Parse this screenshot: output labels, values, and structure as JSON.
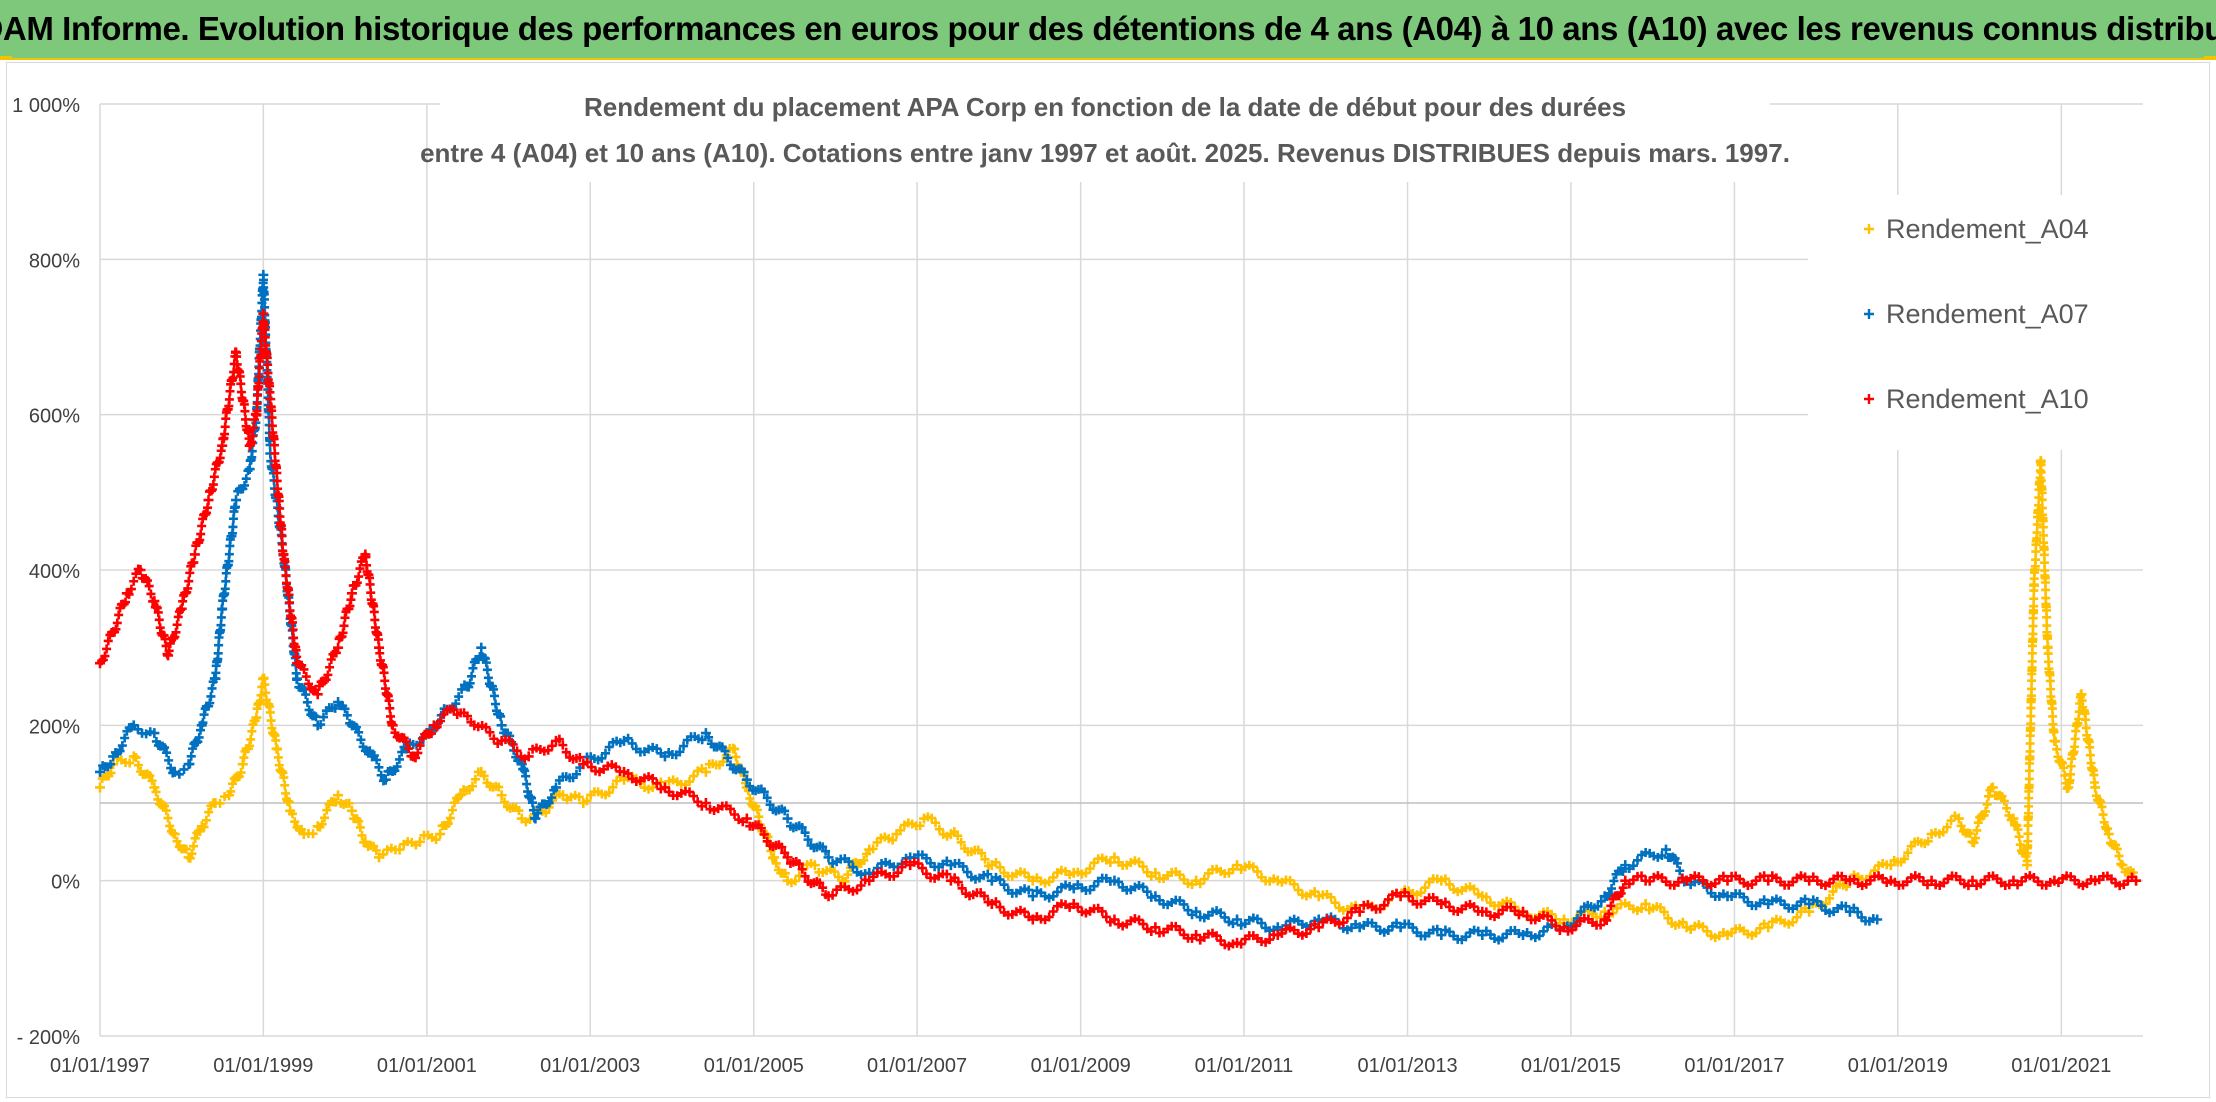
{
  "banner": {
    "title": "ADAM Informe. Evolution historique des performances en euros pour des détentions de 4 ans (A04) à 10 ans (A10) avec les revenus connus distribués"
  },
  "colors": {
    "banner_bg": "#7dc87a",
    "banner_accent": "#f2c300",
    "grid": "#d9d9d9",
    "axis_text": "#404040",
    "title_text": "#595959"
  },
  "chart_data": {
    "type": "scatter",
    "title": "Rendement du placement APA Corp en fonction de la date de début pour des durées",
    "subtitle": "entre 4 (A04) et 10 ans (A10). Cotations entre janv 1997 et août. 2025. Revenus DISTRIBUES depuis mars. 1997.",
    "xlabel": "",
    "ylabel": "",
    "xlim": [
      "01/01/1997",
      "01/01/2022"
    ],
    "ylim": [
      -200,
      1000
    ],
    "x_ticks": [
      "01/01/1997",
      "01/01/1999",
      "01/01/2001",
      "01/01/2003",
      "01/01/2005",
      "01/01/2007",
      "01/01/2009",
      "01/01/2011",
      "01/01/2013",
      "01/01/2015",
      "01/01/2017",
      "01/01/2019",
      "01/01/2021"
    ],
    "y_ticks": [
      {
        "value": -200,
        "label": "- 200%"
      },
      {
        "value": 0,
        "label": "0%"
      },
      {
        "value": 200,
        "label": "200%"
      },
      {
        "value": 400,
        "label": "400%"
      },
      {
        "value": 600,
        "label": "600%"
      },
      {
        "value": 800,
        "label": "800%"
      },
      {
        "value": 1000,
        "label": "1 000%"
      }
    ],
    "grid": true,
    "legend_position": "top-right",
    "marker": "+",
    "series": [
      {
        "name": "Rendement_A04",
        "color": "#ffc000",
        "points": [
          [
            "01/01/1997",
            120
          ],
          [
            "01/03/1997",
            150
          ],
          [
            "01/06/1997",
            160
          ],
          [
            "01/09/1997",
            120
          ],
          [
            "01/12/1997",
            60
          ],
          [
            "01/02/1998",
            30
          ],
          [
            "01/04/1998",
            70
          ],
          [
            "01/06/1998",
            100
          ],
          [
            "01/08/1998",
            110
          ],
          [
            "01/10/1998",
            150
          ],
          [
            "01/12/1998",
            210
          ],
          [
            "01/01/1999",
            260
          ],
          [
            "01/03/1999",
            170
          ],
          [
            "01/05/1999",
            90
          ],
          [
            "01/07/1999",
            60
          ],
          [
            "01/09/1999",
            70
          ],
          [
            "01/12/1999",
            110
          ],
          [
            "01/02/2000",
            90
          ],
          [
            "01/04/2000",
            50
          ],
          [
            "01/06/2000",
            30
          ],
          [
            "01/09/2000",
            40
          ],
          [
            "01/12/2000",
            50
          ],
          [
            "01/03/2001",
            60
          ],
          [
            "01/06/2001",
            110
          ],
          [
            "01/09/2001",
            140
          ],
          [
            "01/12/2001",
            110
          ],
          [
            "01/03/2002",
            80
          ],
          [
            "01/06/2002",
            90
          ],
          [
            "01/09/2002",
            110
          ],
          [
            "01/12/2002",
            100
          ],
          [
            "01/06/2003",
            130
          ],
          [
            "01/12/2003",
            120
          ],
          [
            "01/06/2004",
            140
          ],
          [
            "01/10/2004",
            170
          ],
          [
            "01/12/2004",
            120
          ],
          [
            "01/04/2005",
            30
          ],
          [
            "01/06/2005",
            0
          ],
          [
            "01/10/2005",
            20
          ],
          [
            "01/02/2006",
            0
          ],
          [
            "01/06/2006",
            40
          ],
          [
            "01/10/2006",
            60
          ],
          [
            "01/02/2007",
            80
          ],
          [
            "01/06/2007",
            60
          ],
          [
            "01/12/2007",
            20
          ],
          [
            "01/06/2008",
            0
          ],
          [
            "01/12/2008",
            10
          ],
          [
            "01/06/2009",
            30
          ],
          [
            "01/12/2009",
            10
          ],
          [
            "01/06/2010",
            0
          ],
          [
            "01/12/2010",
            20
          ],
          [
            "01/06/2011",
            0
          ],
          [
            "01/12/2011",
            -20
          ],
          [
            "01/06/2012",
            -40
          ],
          [
            "01/12/2012",
            -20
          ],
          [
            "01/06/2013",
            0
          ],
          [
            "01/12/2013",
            -20
          ],
          [
            "01/06/2014",
            -40
          ],
          [
            "01/12/2014",
            -50
          ],
          [
            "01/06/2015",
            -40
          ],
          [
            "01/12/2015",
            -30
          ],
          [
            "01/06/2016",
            -60
          ],
          [
            "01/12/2016",
            -70
          ],
          [
            "01/06/2017",
            -60
          ],
          [
            "01/12/2017",
            -40
          ],
          [
            "01/06/2018",
            0
          ],
          [
            "01/12/2018",
            20
          ],
          [
            "01/06/2019",
            60
          ],
          [
            "01/10/2019",
            80
          ],
          [
            "01/12/2019",
            50
          ],
          [
            "01/03/2020",
            120
          ],
          [
            "01/06/2020",
            80
          ],
          [
            "01/08/2020",
            20
          ],
          [
            "01/09/2020",
            380
          ],
          [
            "01/10/2020",
            540
          ],
          [
            "01/11/2020",
            300
          ],
          [
            "01/12/2020",
            180
          ],
          [
            "01/02/2021",
            120
          ],
          [
            "01/04/2021",
            240
          ],
          [
            "01/06/2021",
            120
          ],
          [
            "01/08/2021",
            60
          ],
          [
            "01/10/2021",
            20
          ],
          [
            "01/12/2021",
            0
          ]
        ]
      },
      {
        "name": "Rendement_A07",
        "color": "#0070c0",
        "points": [
          [
            "01/01/1997",
            140
          ],
          [
            "01/03/1997",
            160
          ],
          [
            "01/06/1997",
            200
          ],
          [
            "01/09/1997",
            190
          ],
          [
            "01/12/1997",
            140
          ],
          [
            "01/02/1998",
            150
          ],
          [
            "01/04/1998",
            200
          ],
          [
            "01/06/1998",
            260
          ],
          [
            "01/07/1998",
            350
          ],
          [
            "01/09/1998",
            490
          ],
          [
            "01/11/1998",
            530
          ],
          [
            "01/12/1998",
            600
          ],
          [
            "01/01/1999",
            780
          ],
          [
            "01/02/1999",
            550
          ],
          [
            "01/04/1999",
            420
          ],
          [
            "01/06/1999",
            260
          ],
          [
            "01/09/1999",
            200
          ],
          [
            "01/12/1999",
            230
          ],
          [
            "01/02/2000",
            200
          ],
          [
            "01/05/2000",
            160
          ],
          [
            "01/07/2000",
            130
          ],
          [
            "01/10/2000",
            170
          ],
          [
            "01/01/2001",
            190
          ],
          [
            "01/04/2001",
            220
          ],
          [
            "01/07/2001",
            250
          ],
          [
            "01/09/2001",
            300
          ],
          [
            "01/12/2001",
            200
          ],
          [
            "01/03/2002",
            150
          ],
          [
            "01/05/2002",
            80
          ],
          [
            "01/08/2002",
            120
          ],
          [
            "01/12/2002",
            150
          ],
          [
            "01/06/2003",
            180
          ],
          [
            "01/12/2003",
            160
          ],
          [
            "01/06/2004",
            190
          ],
          [
            "01/12/2004",
            130
          ],
          [
            "01/06/2005",
            80
          ],
          [
            "01/12/2005",
            30
          ],
          [
            "01/06/2006",
            10
          ],
          [
            "01/12/2006",
            30
          ],
          [
            "01/06/2007",
            20
          ],
          [
            "01/12/2007",
            0
          ],
          [
            "01/06/2008",
            -20
          ],
          [
            "01/12/2008",
            -10
          ],
          [
            "01/06/2009",
            0
          ],
          [
            "01/12/2009",
            -20
          ],
          [
            "01/06/2010",
            -40
          ],
          [
            "01/12/2010",
            -50
          ],
          [
            "01/06/2011",
            -60
          ],
          [
            "01/12/2011",
            -50
          ],
          [
            "01/06/2012",
            -60
          ],
          [
            "01/12/2012",
            -60
          ],
          [
            "01/06/2013",
            -70
          ],
          [
            "01/12/2013",
            -70
          ],
          [
            "01/06/2014",
            -70
          ],
          [
            "01/12/2014",
            -60
          ],
          [
            "01/06/2015",
            -20
          ],
          [
            "01/09/2015",
            20
          ],
          [
            "01/03/2016",
            40
          ],
          [
            "01/06/2016",
            0
          ],
          [
            "01/12/2016",
            -20
          ],
          [
            "01/06/2017",
            -30
          ],
          [
            "01/12/2017",
            -30
          ],
          [
            "01/06/2018",
            -40
          ],
          [
            "01/10/2018",
            -50
          ]
        ]
      },
      {
        "name": "Rendement_A10",
        "color": "#ff0000",
        "points": [
          [
            "01/01/1997",
            280
          ],
          [
            "01/03/1997",
            320
          ],
          [
            "01/05/1997",
            370
          ],
          [
            "01/07/1997",
            400
          ],
          [
            "01/09/1997",
            360
          ],
          [
            "01/11/1997",
            290
          ],
          [
            "01/01/1998",
            350
          ],
          [
            "01/03/1998",
            420
          ],
          [
            "01/05/1998",
            490
          ],
          [
            "01/07/1998",
            560
          ],
          [
            "01/09/1998",
            680
          ],
          [
            "01/11/1998",
            560
          ],
          [
            "01/12/1998",
            600
          ],
          [
            "01/01/1999",
            730
          ],
          [
            "01/02/1999",
            620
          ],
          [
            "01/04/1999",
            420
          ],
          [
            "01/06/1999",
            280
          ],
          [
            "01/09/1999",
            240
          ],
          [
            "01/12/1999",
            300
          ],
          [
            "01/02/2000",
            370
          ],
          [
            "01/04/2000",
            420
          ],
          [
            "01/06/2000",
            300
          ],
          [
            "01/08/2000",
            200
          ],
          [
            "01/11/2000",
            160
          ],
          [
            "01/02/2001",
            200
          ],
          [
            "01/05/2001",
            220
          ],
          [
            "01/08/2001",
            200
          ],
          [
            "01/12/2001",
            180
          ],
          [
            "01/04/2002",
            160
          ],
          [
            "01/08/2002",
            180
          ],
          [
            "01/12/2002",
            150
          ],
          [
            "01/06/2003",
            140
          ],
          [
            "01/12/2003",
            120
          ],
          [
            "01/06/2004",
            100
          ],
          [
            "01/12/2004",
            80
          ],
          [
            "01/06/2005",
            30
          ],
          [
            "01/12/2005",
            -20
          ],
          [
            "01/06/2006",
            0
          ],
          [
            "01/12/2006",
            20
          ],
          [
            "01/06/2007",
            0
          ],
          [
            "01/12/2007",
            -30
          ],
          [
            "01/06/2008",
            -50
          ],
          [
            "01/12/2008",
            -30
          ],
          [
            "01/06/2009",
            -50
          ],
          [
            "01/12/2009",
            -60
          ],
          [
            "01/06/2010",
            -70
          ],
          [
            "01/12/2010",
            -80
          ],
          [
            "01/06/2011",
            -70
          ],
          [
            "01/12/2011",
            -60
          ],
          [
            "01/06/2012",
            -40
          ],
          [
            "01/12/2012",
            -20
          ],
          [
            "01/06/2013",
            -30
          ],
          [
            "01/12/2013",
            -40
          ],
          [
            "01/06/2014",
            -40
          ],
          [
            "01/12/2014",
            -60
          ],
          [
            "01/06/2015",
            -50
          ],
          [
            "01/09/2015",
            0
          ],
          [
            "01/12/2015",
            0
          ],
          [
            "01/06/2016",
            0
          ],
          [
            "01/12/2016",
            0
          ],
          [
            "01/06/2017",
            0
          ],
          [
            "01/12/2017",
            0
          ],
          [
            "01/06/2018",
            0
          ],
          [
            "01/12/2018",
            0
          ],
          [
            "01/06/2019",
            0
          ],
          [
            "01/12/2019",
            0
          ],
          [
            "01/06/2020",
            0
          ],
          [
            "01/12/2020",
            0
          ],
          [
            "01/06/2021",
            0
          ],
          [
            "01/12/2021",
            0
          ]
        ]
      }
    ]
  }
}
